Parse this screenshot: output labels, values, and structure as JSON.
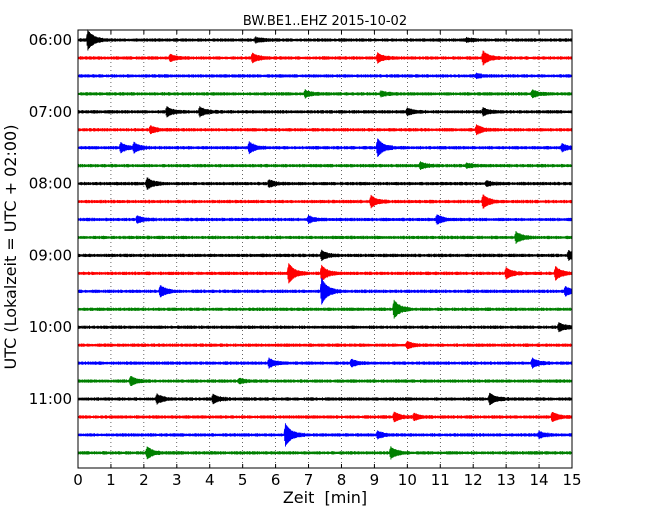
{
  "chart_data": {
    "type": "line",
    "title": "BW.BE1..EHZ 2015-10-02",
    "xlabel": "Zeit  [min]",
    "ylabel": "UTC (Lokalzeit = UTC + 02:00)",
    "xlim": [
      0,
      15
    ],
    "x_ticks": [
      "0",
      "1",
      "2",
      "3",
      "4",
      "5",
      "6",
      "7",
      "8",
      "9",
      "10",
      "11",
      "12",
      "13",
      "14",
      "15"
    ],
    "y_ticks": [
      {
        "label": "06:00",
        "trace_index": 0
      },
      {
        "label": "07:00",
        "trace_index": 4
      },
      {
        "label": "08:00",
        "trace_index": 8
      },
      {
        "label": "09:00",
        "trace_index": 12
      },
      {
        "label": "10:00",
        "trace_index": 16
      },
      {
        "label": "11:00",
        "trace_index": 20
      }
    ],
    "grid": "vertical-dotted",
    "trace_interval_minutes": 15,
    "colors": [
      "#000000",
      "#ff0000",
      "#0000ff",
      "#008000"
    ],
    "traces": [
      {
        "start": "06:00",
        "color": "#000000",
        "events": [
          {
            "t": 0.3,
            "amp": 9
          },
          {
            "t": 5.4,
            "amp": 2
          },
          {
            "t": 11.8,
            "amp": 1.5
          }
        ]
      },
      {
        "start": "06:15",
        "color": "#ff0000",
        "events": [
          {
            "t": 2.8,
            "amp": 3
          },
          {
            "t": 5.3,
            "amp": 4
          },
          {
            "t": 9.1,
            "amp": 4
          },
          {
            "t": 12.3,
            "amp": 6
          }
        ]
      },
      {
        "start": "06:30",
        "color": "#0000ff",
        "events": [
          {
            "t": 12.1,
            "amp": 1.5
          }
        ]
      },
      {
        "start": "06:45",
        "color": "#008000",
        "events": [
          {
            "t": 6.9,
            "amp": 3
          },
          {
            "t": 9.2,
            "amp": 2
          },
          {
            "t": 13.8,
            "amp": 3
          }
        ]
      },
      {
        "start": "07:00",
        "color": "#000000",
        "events": [
          {
            "t": 2.7,
            "amp": 4
          },
          {
            "t": 3.7,
            "amp": 4
          },
          {
            "t": 10.0,
            "amp": 3
          },
          {
            "t": 12.3,
            "amp": 3
          }
        ]
      },
      {
        "start": "07:15",
        "color": "#ff0000",
        "events": [
          {
            "t": 2.2,
            "amp": 3
          },
          {
            "t": 12.1,
            "amp": 4
          }
        ]
      },
      {
        "start": "07:30",
        "color": "#0000ff",
        "events": [
          {
            "t": 1.3,
            "amp": 4
          },
          {
            "t": 1.7,
            "amp": 4
          },
          {
            "t": 5.2,
            "amp": 5
          },
          {
            "t": 9.1,
            "amp": 8
          },
          {
            "t": 14.7,
            "amp": 3
          }
        ]
      },
      {
        "start": "07:45",
        "color": "#008000",
        "events": [
          {
            "t": 10.4,
            "amp": 3
          },
          {
            "t": 11.8,
            "amp": 2
          }
        ]
      },
      {
        "start": "08:00",
        "color": "#000000",
        "events": [
          {
            "t": 2.1,
            "amp": 5
          },
          {
            "t": 5.8,
            "amp": 3
          },
          {
            "t": 12.4,
            "amp": 2
          }
        ]
      },
      {
        "start": "08:15",
        "color": "#ff0000",
        "events": [
          {
            "t": 8.9,
            "amp": 5
          },
          {
            "t": 12.3,
            "amp": 6
          }
        ]
      },
      {
        "start": "08:30",
        "color": "#0000ff",
        "events": [
          {
            "t": 1.8,
            "amp": 3
          },
          {
            "t": 7.0,
            "amp": 3
          },
          {
            "t": 10.9,
            "amp": 4
          }
        ]
      },
      {
        "start": "08:45",
        "color": "#008000",
        "events": [
          {
            "t": 13.3,
            "amp": 5
          }
        ]
      },
      {
        "start": "09:00",
        "color": "#000000",
        "events": [
          {
            "t": 7.4,
            "amp": 4
          },
          {
            "t": 14.9,
            "amp": 4
          }
        ]
      },
      {
        "start": "09:15",
        "color": "#ff0000",
        "events": [
          {
            "t": 6.4,
            "amp": 9
          },
          {
            "t": 7.4,
            "amp": 7
          },
          {
            "t": 13.0,
            "amp": 5
          },
          {
            "t": 14.5,
            "amp": 6
          }
        ]
      },
      {
        "start": "09:30",
        "color": "#0000ff",
        "events": [
          {
            "t": 2.5,
            "amp": 5
          },
          {
            "t": 7.4,
            "amp": 12
          },
          {
            "t": 14.8,
            "amp": 4
          }
        ]
      },
      {
        "start": "09:45",
        "color": "#008000",
        "events": [
          {
            "t": 9.6,
            "amp": 8
          }
        ]
      },
      {
        "start": "10:00",
        "color": "#000000",
        "events": [
          {
            "t": 14.6,
            "amp": 4
          }
        ]
      },
      {
        "start": "10:15",
        "color": "#ff0000",
        "events": [
          {
            "t": 10.0,
            "amp": 3
          }
        ]
      },
      {
        "start": "10:30",
        "color": "#0000ff",
        "events": [
          {
            "t": 5.8,
            "amp": 4
          },
          {
            "t": 8.3,
            "amp": 3
          },
          {
            "t": 13.8,
            "amp": 4
          }
        ]
      },
      {
        "start": "10:45",
        "color": "#008000",
        "events": [
          {
            "t": 1.6,
            "amp": 4
          },
          {
            "t": 4.9,
            "amp": 2
          }
        ]
      },
      {
        "start": "11:00",
        "color": "#000000",
        "events": [
          {
            "t": 2.4,
            "amp": 4
          },
          {
            "t": 4.1,
            "amp": 4
          },
          {
            "t": 12.5,
            "amp": 5
          }
        ]
      },
      {
        "start": "11:15",
        "color": "#ff0000",
        "events": [
          {
            "t": 9.6,
            "amp": 4
          },
          {
            "t": 10.2,
            "amp": 3
          },
          {
            "t": 14.4,
            "amp": 4
          }
        ]
      },
      {
        "start": "11:30",
        "color": "#0000ff",
        "events": [
          {
            "t": 6.3,
            "amp": 10
          },
          {
            "t": 9.1,
            "amp": 3
          },
          {
            "t": 14.0,
            "amp": 3
          }
        ]
      },
      {
        "start": "11:45",
        "color": "#008000",
        "events": [
          {
            "t": 2.1,
            "amp": 5
          },
          {
            "t": 9.5,
            "amp": 5
          }
        ]
      }
    ]
  }
}
